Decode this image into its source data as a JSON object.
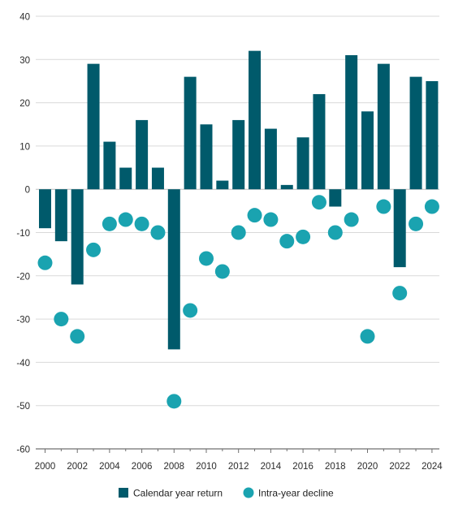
{
  "chart_data": {
    "type": "bar",
    "title": "",
    "xlabel": "",
    "ylabel": "",
    "ylim": [
      -60,
      40
    ],
    "yticks": [
      40,
      30,
      20,
      10,
      0,
      -10,
      -20,
      -30,
      -40,
      -50,
      -60
    ],
    "grid": true,
    "legend_position": "bottom",
    "x": [
      2000,
      2001,
      2002,
      2003,
      2004,
      2005,
      2006,
      2007,
      2008,
      2009,
      2010,
      2011,
      2012,
      2013,
      2014,
      2015,
      2016,
      2017,
      2018,
      2019,
      2020,
      2021,
      2022,
      2023,
      2024
    ],
    "x_tick_labels": [
      "2000",
      "2002",
      "2004",
      "2006",
      "2008",
      "2010",
      "2012",
      "2014",
      "2016",
      "2018",
      "2020",
      "2022",
      "2024"
    ],
    "series": [
      {
        "name": "Calendar year return",
        "mark": "bar",
        "color": "#005a6b",
        "values": [
          -9,
          -12,
          -22,
          29,
          11,
          5,
          16,
          5,
          -37,
          26,
          15,
          2,
          16,
          32,
          14,
          1,
          12,
          22,
          -4,
          31,
          18,
          29,
          -18,
          26,
          25
        ]
      },
      {
        "name": "Intra-year decline",
        "mark": "dot",
        "color": "#1aa3b0",
        "values": [
          -17,
          -30,
          -34,
          -14,
          -8,
          -7,
          -8,
          -10,
          -49,
          -28,
          -16,
          -19,
          -10,
          -6,
          -7,
          -12,
          -11,
          -3,
          -10,
          -7,
          -34,
          -4,
          -24,
          -8,
          -4
        ]
      }
    ]
  }
}
